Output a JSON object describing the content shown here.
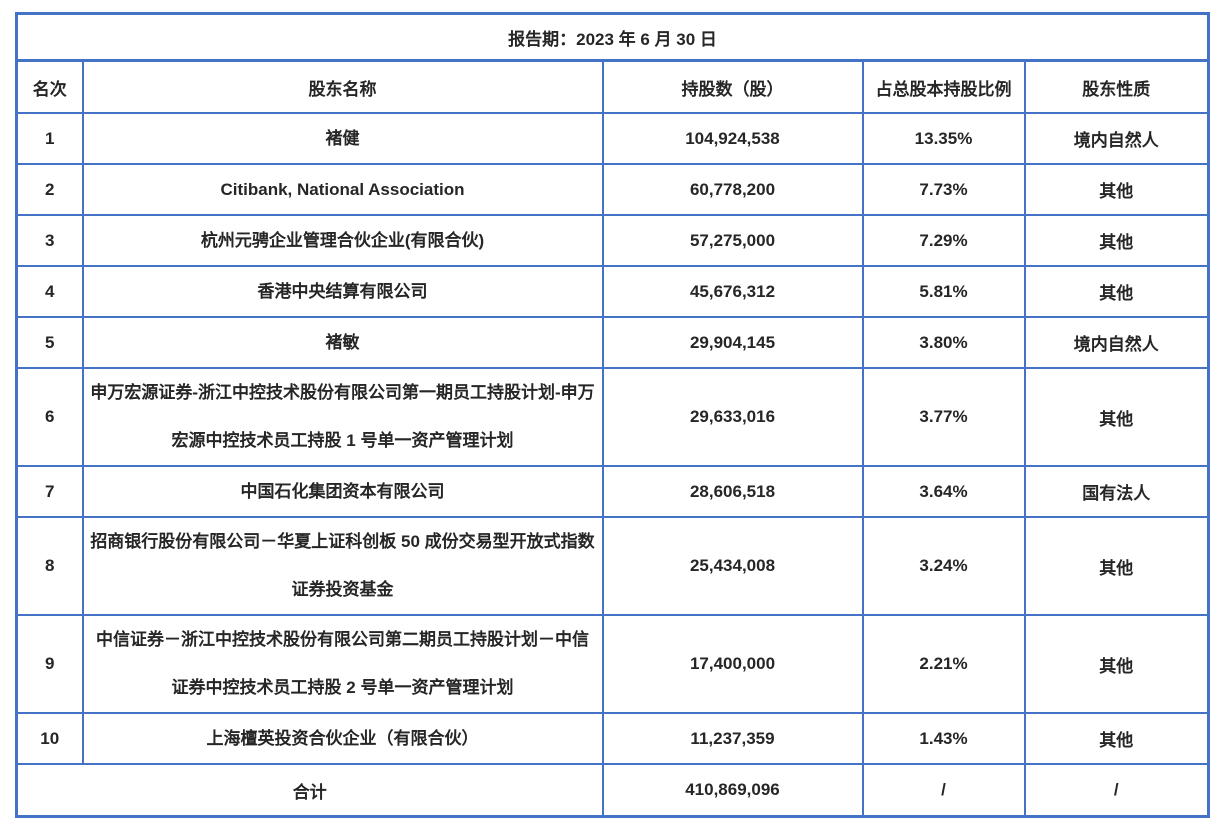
{
  "table": {
    "border_color": "#4472C4",
    "text_color": "#262626",
    "report_period": "报告期：2023 年 6 月 30 日",
    "columns": {
      "rank": "名次",
      "name": "股东名称",
      "shares": "持股数（股）",
      "percentage": "占总股本持股比例",
      "nature": "股东性质"
    },
    "rows": [
      {
        "rank": "1",
        "name": "褚健",
        "shares": "104,924,538",
        "percentage": "13.35%",
        "nature": "境内自然人"
      },
      {
        "rank": "2",
        "name": "Citibank, National Association",
        "shares": "60,778,200",
        "percentage": "7.73%",
        "nature": "其他"
      },
      {
        "rank": "3",
        "name": "杭州元骋企业管理合伙企业(有限合伙)",
        "shares": "57,275,000",
        "percentage": "7.29%",
        "nature": "其他"
      },
      {
        "rank": "4",
        "name": "香港中央结算有限公司",
        "shares": "45,676,312",
        "percentage": "5.81%",
        "nature": "其他"
      },
      {
        "rank": "5",
        "name": "褚敏",
        "shares": "29,904,145",
        "percentage": "3.80%",
        "nature": "境内自然人"
      },
      {
        "rank": "6",
        "name": "申万宏源证券-浙江中控技术股份有限公司第一期员工持股计划-申万宏源中控技术员工持股 1 号单一资产管理计划",
        "shares": "29,633,016",
        "percentage": "3.77%",
        "nature": "其他"
      },
      {
        "rank": "7",
        "name": "中国石化集团资本有限公司",
        "shares": "28,606,518",
        "percentage": "3.64%",
        "nature": "国有法人"
      },
      {
        "rank": "8",
        "name": "招商银行股份有限公司－华夏上证科创板 50 成份交易型开放式指数证券投资基金",
        "shares": "25,434,008",
        "percentage": "3.24%",
        "nature": "其他"
      },
      {
        "rank": "9",
        "name": "中信证券－浙江中控技术股份有限公司第二期员工持股计划－中信证券中控技术员工持股 2 号单一资产管理计划",
        "shares": "17,400,000",
        "percentage": "2.21%",
        "nature": "其他"
      },
      {
        "rank": "10",
        "name": "上海檀英投资合伙企业（有限合伙）",
        "shares": "11,237,359",
        "percentage": "1.43%",
        "nature": "其他"
      }
    ],
    "total": {
      "label": "合计",
      "shares": "410,869,096",
      "percentage": "/",
      "nature": "/"
    }
  }
}
